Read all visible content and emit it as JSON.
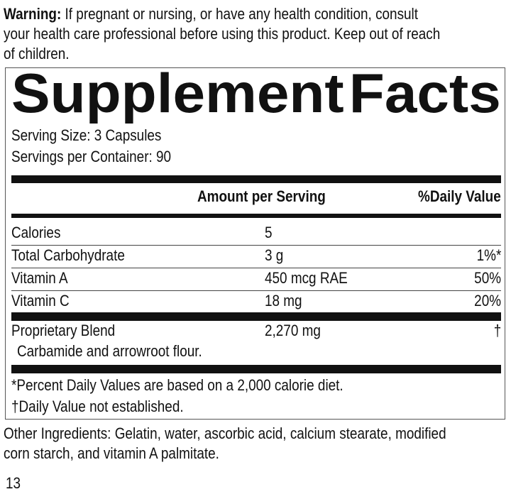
{
  "warning": {
    "label": "Warning:",
    "lines": [
      " If pregnant or nursing, or have any health condition, consult",
      "your health care professional before using this product. Keep out of reach",
      "of children."
    ]
  },
  "title": {
    "word1": "Supplement",
    "word2": "Facts"
  },
  "serving_size": "Serving Size: 3 Capsules",
  "servings_per_container": "Servings per Container: 90",
  "headers": {
    "amount": "Amount per Serving",
    "dv": "%Daily Value"
  },
  "rows": [
    {
      "name": "Calories",
      "amount": "5",
      "dv": ""
    },
    {
      "name": "Total Carbohydrate",
      "amount": "3 g",
      "dv": "1%*"
    },
    {
      "name": "Vitamin A",
      "amount": "450 mcg RAE",
      "dv": "50%"
    },
    {
      "name": "Vitamin C",
      "amount": "18 mg",
      "dv": "20%"
    },
    {
      "name": "Proprietary Blend",
      "amount": "2,270 mg",
      "dv": "†"
    }
  ],
  "blend_ingredients": "Carbamide and arrowroot flour.",
  "footnotes": [
    "*Percent Daily Values are based on a 2,000 calorie diet.",
    "†Daily Value not established."
  ],
  "other_ingredients": [
    "Other Ingredients: Gelatin, water, ascorbic acid, calcium stearate, modified",
    "corn starch, and vitamin A palmitate."
  ],
  "page_number": "13"
}
